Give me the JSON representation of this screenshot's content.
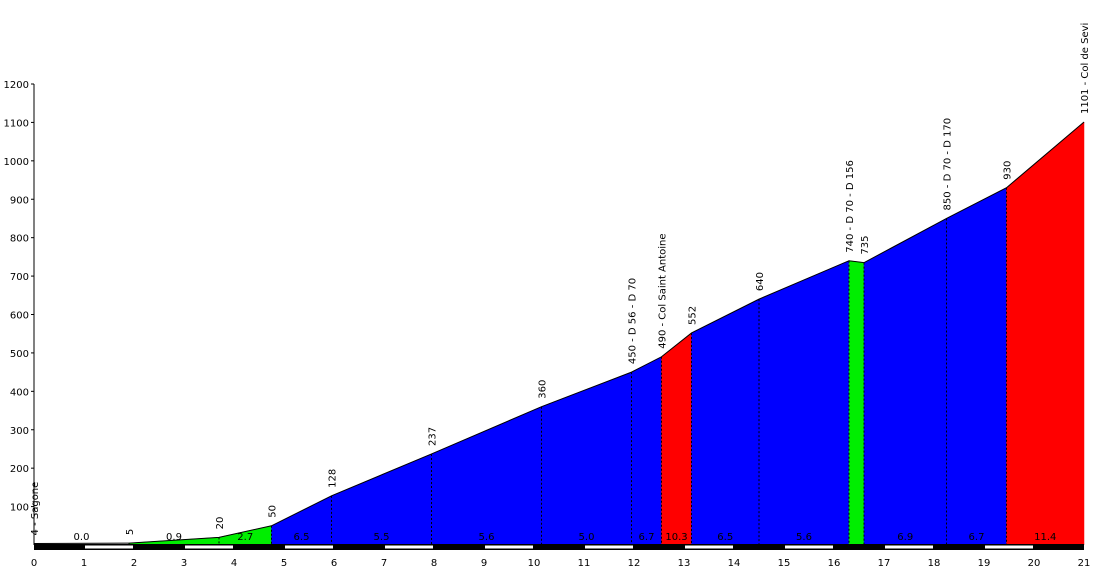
{
  "chart_data": {
    "type": "area",
    "title": "",
    "xlabel": "",
    "ylabel": "",
    "xlim": [
      0,
      21
    ],
    "ylim": [
      0,
      1200
    ],
    "x_ticks": [
      "0",
      "1",
      "2",
      "3",
      "4",
      "5",
      "6",
      "7",
      "8",
      "9",
      "10",
      "11",
      "12",
      "13",
      "14",
      "15",
      "16",
      "17",
      "18",
      "19",
      "20",
      "21"
    ],
    "y_ticks": [
      "100",
      "200",
      "300",
      "400",
      "500",
      "600",
      "700",
      "800",
      "900",
      "1000",
      "1100",
      "1200"
    ],
    "grid": false,
    "colors": {
      "flat": "#ffffff",
      "gentle": "#00ee00",
      "moderate": "#0000ff",
      "steep": "#ff0000"
    },
    "profile": [
      {
        "x": 0.0,
        "y": 4
      },
      {
        "x": 1.9,
        "y": 5
      },
      {
        "x": 3.7,
        "y": 20
      },
      {
        "x": 4.75,
        "y": 50
      },
      {
        "x": 5.95,
        "y": 128
      },
      {
        "x": 7.95,
        "y": 237
      },
      {
        "x": 10.15,
        "y": 360
      },
      {
        "x": 11.95,
        "y": 450
      },
      {
        "x": 12.55,
        "y": 490
      },
      {
        "x": 13.15,
        "y": 552
      },
      {
        "x": 14.5,
        "y": 640
      },
      {
        "x": 16.3,
        "y": 740
      },
      {
        "x": 16.6,
        "y": 735
      },
      {
        "x": 18.25,
        "y": 850
      },
      {
        "x": 19.45,
        "y": 930
      },
      {
        "x": 21.0,
        "y": 1101
      }
    ],
    "segments": [
      {
        "color": "flat",
        "pct": "0.0"
      },
      {
        "color": "gentle",
        "pct": "0.9"
      },
      {
        "color": "gentle",
        "pct": "2.7"
      },
      {
        "color": "moderate",
        "pct": "6.5"
      },
      {
        "color": "moderate",
        "pct": "5.5"
      },
      {
        "color": "moderate",
        "pct": "5.6"
      },
      {
        "color": "moderate",
        "pct": "5.0"
      },
      {
        "color": "moderate",
        "pct": "6.7"
      },
      {
        "color": "steep",
        "pct": "10.3"
      },
      {
        "color": "moderate",
        "pct": "6.5"
      },
      {
        "color": "moderate",
        "pct": "5.6"
      },
      {
        "color": "gentle",
        "pct": ""
      },
      {
        "color": "moderate",
        "pct": "6.9"
      },
      {
        "color": "moderate",
        "pct": "6.7"
      },
      {
        "color": "steep",
        "pct": "11.4"
      }
    ],
    "annotations": [
      {
        "point": 0,
        "label": "4 - Sagone"
      },
      {
        "point": 1,
        "label": "5"
      },
      {
        "point": 2,
        "label": "20"
      },
      {
        "point": 3,
        "label": "50"
      },
      {
        "point": 4,
        "label": "128"
      },
      {
        "point": 5,
        "label": "237"
      },
      {
        "point": 6,
        "label": "360"
      },
      {
        "point": 7,
        "label": "450 - D 56 - D 70"
      },
      {
        "point": 8,
        "label": "490 - Col Saint Antoine"
      },
      {
        "point": 9,
        "label": "552"
      },
      {
        "point": 10,
        "label": "640"
      },
      {
        "point": 11,
        "label": "740 - D 70 - D 156"
      },
      {
        "point": 12,
        "label": "735"
      },
      {
        "point": 13,
        "label": "850 - D 70 - D 170"
      },
      {
        "point": 14,
        "label": "930"
      },
      {
        "point": 15,
        "label": "1101 - Col de Sevi"
      }
    ]
  }
}
